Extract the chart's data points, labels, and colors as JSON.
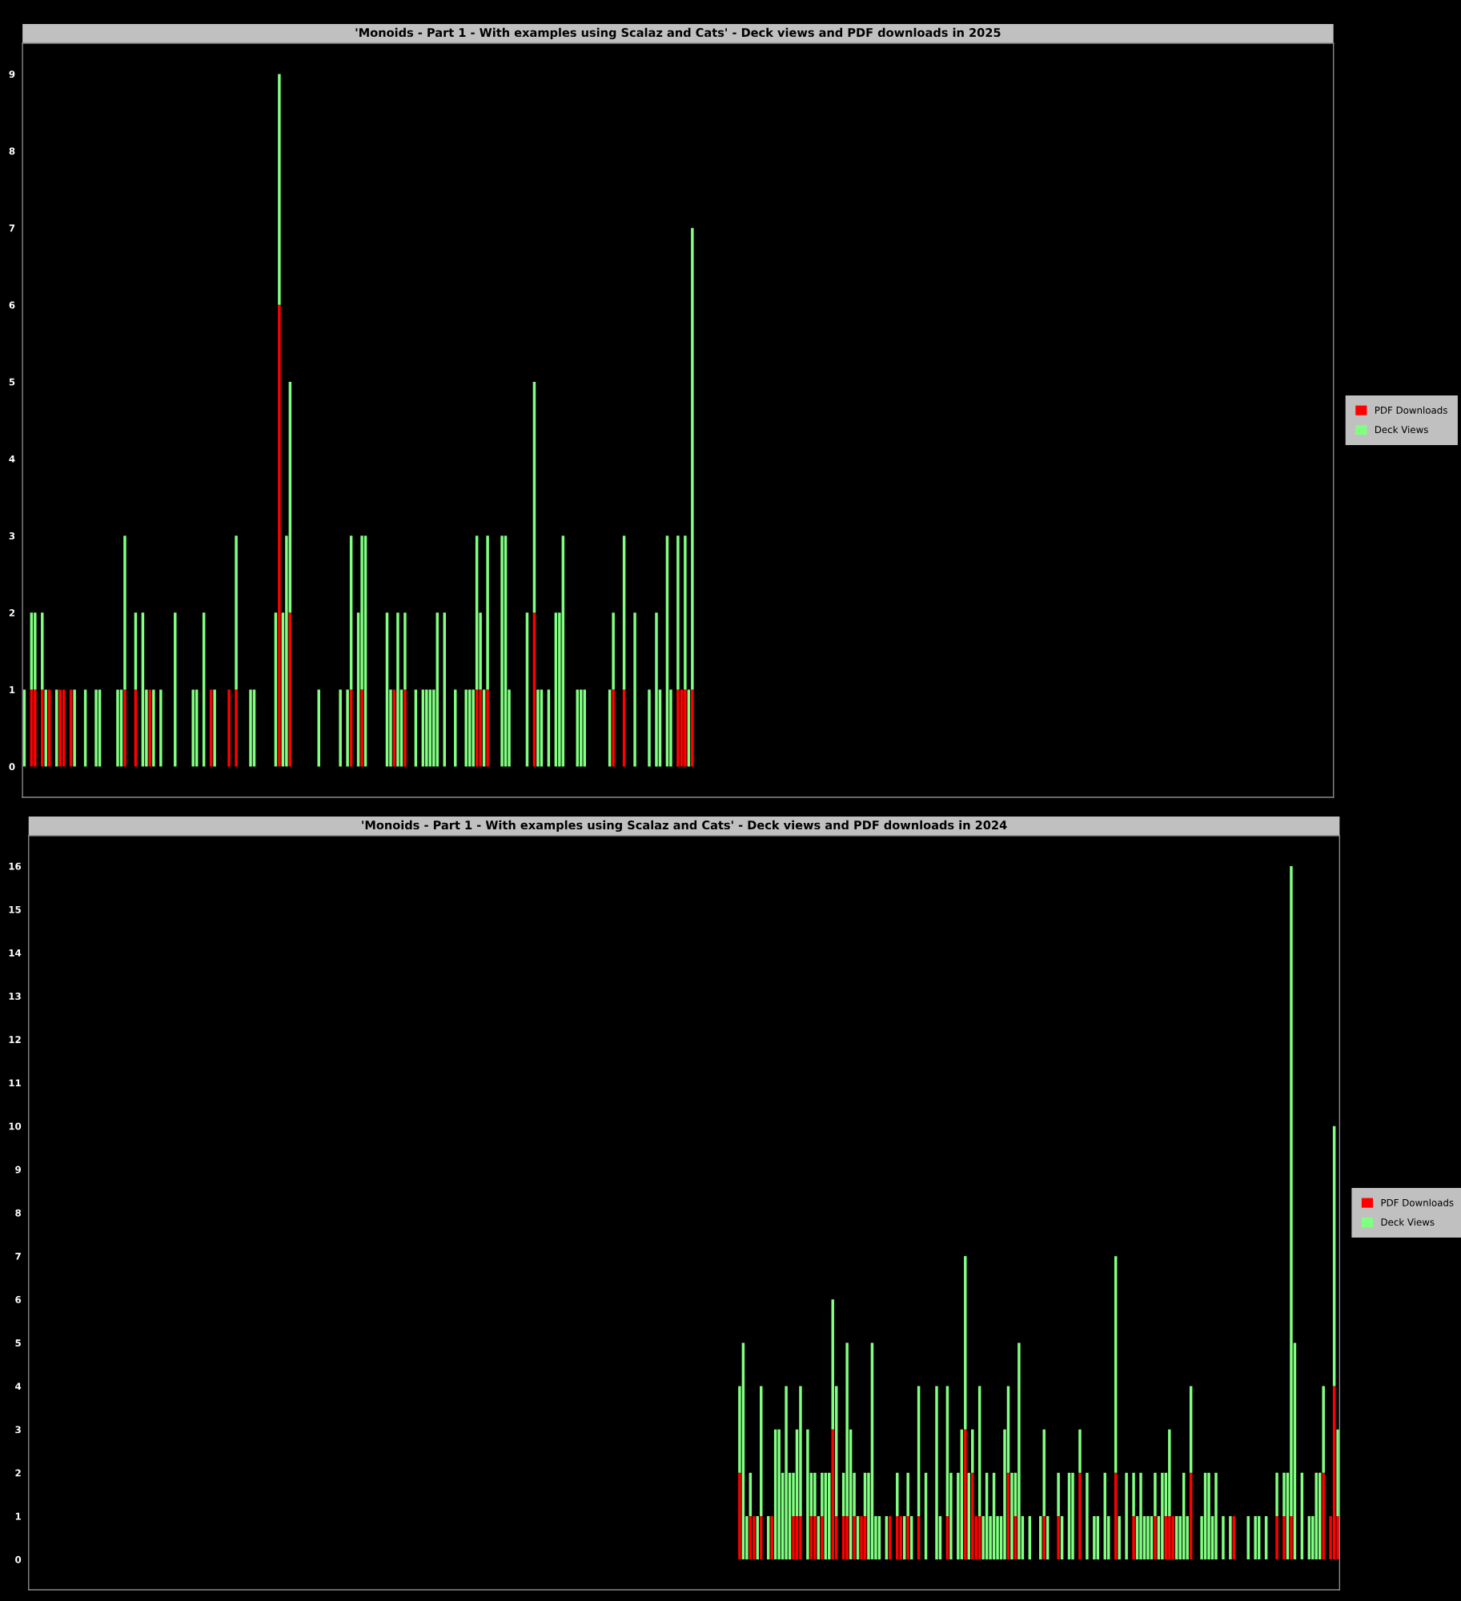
{
  "chart_data": [
    {
      "type": "bar",
      "stacked": true,
      "legend": "right",
      "title": "'Monoids - Part 1 - With examples using Scalaz and Cats' - Deck views and PDF downloads in 2025",
      "ylim": [
        -0.4,
        9.4
      ],
      "yticks": [
        0,
        1,
        2,
        3,
        4,
        5,
        6,
        7,
        8,
        9
      ],
      "categories": [
        null,
        null,
        null,
        null,
        null,
        null,
        null,
        null,
        null,
        null,
        null,
        null,
        null,
        null,
        null,
        null,
        null,
        null,
        null,
        null,
        null,
        null,
        null,
        null,
        null,
        null,
        null,
        null,
        null,
        null,
        null,
        null,
        null,
        null,
        null,
        null,
        null,
        null,
        null,
        null,
        null,
        null,
        null,
        null,
        null,
        null,
        null,
        null,
        null,
        null,
        null,
        null,
        null,
        null,
        null,
        null,
        null,
        null,
        null,
        null,
        null,
        null,
        null,
        null,
        null,
        null,
        null,
        null,
        null,
        null,
        null,
        null,
        null,
        null,
        null,
        null,
        null,
        null,
        null,
        null,
        null,
        null,
        null,
        null,
        null,
        null,
        null,
        null,
        null,
        null,
        null,
        null,
        null,
        null,
        null,
        null,
        null,
        null,
        null,
        null,
        null,
        null,
        null,
        null,
        null,
        null,
        null,
        null,
        null,
        null,
        null,
        null,
        null,
        null,
        null,
        null,
        null,
        null,
        null,
        null,
        null,
        null,
        null,
        null,
        null,
        null,
        null,
        null,
        null,
        null,
        null,
        null,
        null,
        null,
        null,
        null,
        null,
        null,
        null,
        null,
        null,
        null,
        null,
        null,
        null,
        null,
        null,
        null,
        null,
        null,
        null,
        null,
        null,
        null,
        null,
        null,
        null,
        null,
        null,
        null,
        null,
        null,
        null,
        null,
        null,
        null,
        null,
        null,
        null,
        null,
        null,
        null,
        null,
        null,
        null,
        null,
        null,
        null,
        null,
        null,
        null,
        null,
        null,
        null,
        null,
        null,
        null,
        null,
        null,
        null,
        null,
        null,
        null,
        null,
        null,
        null,
        null,
        null,
        null,
        null,
        null,
        null,
        null,
        null,
        null,
        null,
        null,
        null,
        null,
        null,
        null,
        null,
        null,
        null,
        null,
        null,
        null,
        null,
        null,
        null,
        null,
        null,
        null,
        null,
        null,
        null,
        null,
        null,
        null,
        null,
        null,
        null,
        null,
        null,
        null,
        null,
        null,
        null,
        null,
        null,
        null,
        null,
        null,
        null,
        null,
        null,
        null,
        null,
        null,
        null,
        null,
        null,
        null,
        null,
        null,
        null,
        null,
        null,
        null,
        null,
        null,
        null,
        null,
        null,
        null,
        null,
        null,
        null,
        null,
        null,
        null,
        null,
        null,
        null,
        null,
        null,
        null,
        null,
        null,
        null,
        null,
        null,
        null,
        null,
        null,
        null,
        null,
        null,
        null,
        null,
        null,
        null,
        null,
        null,
        null,
        null,
        null,
        null,
        null,
        null,
        null,
        null,
        null,
        null,
        null,
        null,
        null,
        null,
        null,
        null,
        null,
        null,
        null,
        null,
        null,
        null,
        null,
        null,
        null,
        null,
        null,
        null,
        null,
        null,
        null,
        null,
        null,
        null,
        null,
        null,
        null,
        null,
        null,
        null,
        null,
        null,
        null,
        null,
        null,
        null,
        null,
        null,
        null,
        null,
        null,
        null,
        null,
        null,
        null,
        null,
        null,
        null,
        null,
        null,
        null,
        null,
        null,
        null,
        null,
        null,
        null,
        null,
        null,
        null,
        null
      ],
      "series": [
        {
          "name": "PDF Downloads",
          "color": "#ff0000",
          "values": [
            0,
            0,
            1,
            1,
            0,
            1,
            0,
            1,
            0,
            0,
            1,
            1,
            0,
            1,
            0,
            0,
            0,
            0,
            0,
            0,
            0,
            0,
            0,
            0,
            0,
            0,
            0,
            0,
            1,
            0,
            0,
            1,
            0,
            0,
            0,
            1,
            0,
            0,
            0,
            0,
            0,
            0,
            0,
            0,
            0,
            0,
            0,
            0,
            0,
            0,
            0,
            0,
            1,
            0,
            0,
            0,
            0,
            1,
            0,
            1,
            0,
            0,
            0,
            0,
            0,
            0,
            0,
            0,
            0,
            0,
            0,
            6,
            0,
            0,
            2,
            0,
            0,
            0,
            0,
            0,
            0,
            0,
            0,
            0,
            0,
            0,
            0,
            0,
            0,
            0,
            0,
            1,
            0,
            0,
            1,
            0,
            0,
            0,
            0,
            0,
            0,
            0,
            0,
            1,
            0,
            0,
            1,
            0,
            0,
            0,
            0,
            0,
            0,
            0,
            0,
            0,
            0,
            0,
            0,
            0,
            0,
            0,
            0,
            0,
            0,
            0,
            1,
            1,
            0,
            1,
            0,
            0,
            0,
            0,
            0,
            0,
            0,
            0,
            0,
            0,
            0,
            0,
            2,
            0,
            0,
            0,
            0,
            0,
            0,
            0,
            0,
            0,
            0,
            0,
            0,
            0,
            0,
            0,
            0,
            0,
            0,
            0,
            0,
            0,
            1,
            0,
            0,
            1,
            0,
            0,
            0,
            0,
            0,
            0,
            0,
            0,
            0,
            0,
            0,
            0,
            0,
            0,
            1,
            1,
            1,
            0,
            1,
            0,
            0,
            0,
            0,
            0,
            0,
            0,
            0,
            0,
            0,
            0,
            0,
            0,
            0,
            0,
            0,
            0,
            0,
            0,
            0,
            0,
            0,
            0,
            0,
            0,
            0,
            0,
            0,
            0,
            0,
            0,
            0,
            0,
            0,
            0,
            0,
            0,
            0,
            0,
            0,
            0,
            0,
            0,
            0,
            0,
            0,
            0,
            0,
            0,
            0,
            0,
            0,
            0,
            0,
            0,
            0,
            0,
            0,
            0,
            0,
            0,
            0,
            0,
            0,
            0,
            0,
            0,
            0,
            0,
            0,
            0,
            0,
            0,
            0,
            0,
            0,
            0,
            0,
            0,
            0,
            0,
            0,
            0,
            0,
            0,
            0,
            0,
            0,
            0,
            0,
            0,
            0,
            0,
            0,
            0,
            0,
            0,
            0,
            0,
            0,
            0,
            0,
            0,
            0,
            0,
            0,
            0,
            0,
            0,
            0,
            0,
            0,
            0,
            0,
            0,
            0,
            0,
            0,
            0,
            0,
            0,
            0,
            0,
            0,
            0,
            0,
            0,
            0,
            0,
            0,
            0,
            0,
            0,
            0,
            0,
            0,
            0,
            0,
            0,
            0,
            0,
            0,
            0,
            0,
            0,
            0,
            0,
            0,
            0,
            0,
            0,
            0,
            0,
            0,
            0,
            0,
            0,
            0,
            0,
            0,
            0,
            0,
            0,
            0,
            0,
            0,
            0,
            0,
            0,
            0,
            0,
            0,
            0,
            0,
            0,
            0,
            0,
            0
          ]
        },
        {
          "name": "Deck Views",
          "color": "#80ff80",
          "values": [
            1,
            0,
            1,
            1,
            0,
            1,
            1,
            0,
            0,
            1,
            0,
            0,
            0,
            0,
            1,
            0,
            0,
            1,
            0,
            0,
            1,
            1,
            0,
            0,
            0,
            0,
            1,
            1,
            2,
            0,
            0,
            1,
            0,
            2,
            1,
            0,
            1,
            0,
            1,
            0,
            0,
            0,
            2,
            0,
            0,
            0,
            0,
            1,
            1,
            0,
            2,
            0,
            0,
            1,
            0,
            0,
            0,
            0,
            0,
            2,
            0,
            0,
            0,
            1,
            1,
            0,
            0,
            0,
            0,
            0,
            2,
            3,
            2,
            3,
            3,
            0,
            0,
            0,
            0,
            0,
            0,
            0,
            1,
            0,
            0,
            0,
            0,
            0,
            1,
            0,
            1,
            2,
            0,
            2,
            2,
            3,
            0,
            0,
            0,
            0,
            0,
            2,
            1,
            0,
            2,
            1,
            1,
            0,
            0,
            1,
            0,
            1,
            1,
            1,
            1,
            2,
            0,
            2,
            0,
            0,
            1,
            0,
            0,
            1,
            1,
            1,
            2,
            1,
            1,
            2,
            0,
            0,
            0,
            3,
            3,
            1,
            0,
            0,
            0,
            0,
            2,
            0,
            3,
            1,
            1,
            0,
            1,
            0,
            2,
            2,
            3,
            0,
            0,
            0,
            1,
            1,
            1,
            0,
            0,
            0,
            0,
            0,
            0,
            1,
            1,
            0,
            0,
            2,
            0,
            0,
            2,
            0,
            0,
            0,
            1,
            0,
            2,
            1,
            0,
            3,
            1,
            0,
            2,
            0,
            2,
            1,
            6,
            0,
            0,
            0,
            0,
            0,
            0,
            0,
            0,
            0,
            0,
            0,
            0,
            0,
            0,
            0,
            0,
            0,
            0,
            0,
            0,
            0,
            0,
            0,
            0,
            0,
            0,
            0,
            0,
            0,
            0,
            0,
            0,
            0,
            0,
            0,
            0,
            0,
            0,
            0,
            0,
            0,
            0,
            0,
            0,
            0,
            0,
            0,
            0,
            0,
            0,
            0,
            0,
            0,
            0,
            0,
            0,
            0,
            0,
            0,
            0,
            0,
            0,
            0,
            0,
            0,
            0,
            0,
            0,
            0,
            0,
            0,
            0,
            0,
            0,
            0,
            0,
            0,
            0,
            0,
            0,
            0,
            0,
            0,
            0,
            0,
            0,
            0,
            0,
            0,
            0,
            0,
            0,
            0,
            0,
            0,
            0,
            0,
            0,
            0,
            0,
            0,
            0,
            0,
            0,
            0,
            0,
            0,
            0,
            0,
            0,
            0,
            0,
            0,
            0,
            0,
            0,
            0,
            0,
            0,
            0,
            0,
            0,
            0,
            0,
            0,
            0,
            0,
            0,
            0,
            0,
            0,
            0,
            0,
            0,
            0,
            0,
            0,
            0,
            0,
            0,
            0,
            0,
            0,
            0,
            0,
            0,
            0,
            0,
            0,
            0,
            0,
            0,
            0,
            0,
            0,
            0,
            0,
            0,
            0,
            0,
            0,
            0,
            0,
            0,
            0,
            0,
            0,
            0,
            0,
            0,
            0,
            0,
            0,
            0,
            0,
            0,
            0,
            0
          ]
        }
      ]
    },
    {
      "type": "bar",
      "stacked": true,
      "legend": "right",
      "title": "'Monoids - Part 1 - With examples using Scalaz and Cats' - Deck views and PDF downloads in 2024",
      "ylim": [
        -0.7,
        16.7
      ],
      "yticks": [
        0,
        1,
        2,
        3,
        4,
        5,
        6,
        7,
        8,
        9,
        10,
        11,
        12,
        13,
        14,
        15,
        16
      ],
      "categories": [
        null,
        null,
        null,
        null,
        null,
        null,
        null,
        null,
        null,
        null,
        null,
        null,
        null,
        null,
        null,
        null,
        null,
        null,
        null,
        null,
        null,
        null,
        null,
        null,
        null,
        null,
        null,
        null,
        null,
        null,
        null,
        null,
        null,
        null,
        null,
        null,
        null,
        null,
        null,
        null,
        null,
        null,
        null,
        null,
        null,
        null,
        null,
        null,
        null,
        null,
        null,
        null,
        null,
        null,
        null,
        null,
        null,
        null,
        null,
        null,
        null,
        null,
        null,
        null,
        null,
        null,
        null,
        null,
        null,
        null,
        null,
        null,
        null,
        null,
        null,
        null,
        null,
        null,
        null,
        null,
        null,
        null,
        null,
        null,
        null,
        null,
        null,
        null,
        null,
        null,
        null,
        null,
        null,
        null,
        null,
        null,
        null,
        null,
        null,
        null,
        null,
        null,
        null,
        null,
        null,
        null,
        null,
        null,
        null,
        null,
        null,
        null,
        null,
        null,
        null,
        null,
        null,
        null,
        null,
        null,
        null,
        null,
        null,
        null,
        null,
        null,
        null,
        null,
        null,
        null,
        null,
        null,
        null,
        null,
        null,
        null,
        null,
        null,
        null,
        null,
        null,
        null,
        null,
        null,
        null,
        null,
        null,
        null,
        null,
        null,
        null,
        null,
        null,
        null,
        null,
        null,
        null,
        null,
        null,
        null,
        null,
        null,
        null,
        null,
        null,
        null,
        null,
        null,
        null,
        null,
        null,
        null,
        null,
        null,
        null,
        null,
        null,
        null,
        null,
        null,
        null,
        null,
        null,
        null,
        null,
        null,
        null,
        null,
        null,
        null,
        null,
        null,
        null,
        null,
        null,
        null,
        null,
        null,
        null,
        null,
        null,
        null,
        null,
        null,
        null,
        null,
        null,
        null,
        null,
        null,
        null,
        null,
        null,
        null,
        null,
        null,
        null,
        null,
        null,
        null,
        null,
        null,
        null,
        null,
        null,
        null,
        null,
        null,
        null,
        null,
        null,
        null,
        null,
        null,
        null,
        null,
        null,
        null,
        null,
        null,
        null,
        null,
        null,
        null,
        null,
        null,
        null,
        null,
        null,
        null,
        null,
        null,
        null,
        null,
        null,
        null,
        null,
        null,
        null,
        null,
        null,
        null,
        null,
        null,
        null,
        null,
        null,
        null,
        null,
        null,
        null,
        null,
        null,
        null,
        null,
        null,
        null,
        null,
        null,
        null,
        null,
        null,
        null,
        null,
        null,
        null,
        null,
        null,
        null,
        null,
        null,
        null,
        null,
        null,
        null,
        null,
        null,
        null,
        null,
        null,
        null,
        null,
        null,
        null,
        null,
        null,
        null,
        null,
        null,
        null,
        null,
        null,
        null,
        null,
        null,
        null,
        null,
        null,
        null,
        null,
        null,
        null,
        null,
        null,
        null,
        null,
        null,
        null,
        null,
        null,
        null,
        null,
        null,
        null,
        null,
        null,
        null,
        null,
        null,
        null,
        null,
        null,
        null,
        null,
        null,
        null,
        null,
        null,
        null,
        null,
        null,
        null,
        null,
        null,
        null,
        null,
        null,
        null,
        null,
        null,
        null,
        null,
        null,
        null,
        null,
        null
      ],
      "series": [
        {
          "name": "PDF Downloads",
          "color": "#ff0000",
          "values": [
            0,
            0,
            0,
            0,
            0,
            0,
            0,
            0,
            0,
            0,
            0,
            0,
            0,
            0,
            0,
            0,
            0,
            0,
            0,
            0,
            0,
            0,
            0,
            0,
            0,
            0,
            0,
            0,
            0,
            0,
            0,
            0,
            0,
            0,
            0,
            0,
            0,
            0,
            0,
            0,
            0,
            0,
            0,
            0,
            0,
            0,
            0,
            0,
            0,
            0,
            0,
            0,
            0,
            0,
            0,
            0,
            0,
            0,
            0,
            0,
            0,
            0,
            0,
            0,
            0,
            0,
            0,
            0,
            0,
            0,
            0,
            0,
            0,
            0,
            0,
            0,
            0,
            0,
            0,
            0,
            0,
            0,
            0,
            0,
            0,
            0,
            0,
            0,
            0,
            0,
            0,
            0,
            0,
            0,
            0,
            0,
            0,
            0,
            0,
            0,
            0,
            0,
            0,
            0,
            0,
            0,
            0,
            0,
            0,
            0,
            0,
            0,
            0,
            0,
            0,
            0,
            0,
            0,
            0,
            0,
            0,
            0,
            0,
            0,
            0,
            0,
            0,
            0,
            0,
            0,
            0,
            0,
            0,
            0,
            0,
            0,
            0,
            0,
            0,
            0,
            0,
            0,
            0,
            0,
            0,
            0,
            0,
            0,
            0,
            0,
            0,
            0,
            0,
            0,
            0,
            0,
            0,
            0,
            0,
            0,
            0,
            0,
            0,
            0,
            0,
            0,
            0,
            0,
            0,
            0,
            0,
            0,
            0,
            0,
            0,
            0,
            0,
            0,
            0,
            0,
            0,
            0,
            0,
            0,
            0,
            0,
            0,
            0,
            0,
            0,
            0,
            0,
            0,
            0,
            0,
            0,
            0,
            0,
            2,
            0,
            0,
            1,
            1,
            0,
            1,
            0,
            0,
            1,
            0,
            0,
            0,
            0,
            0,
            1,
            1,
            1,
            0,
            0,
            1,
            1,
            0,
            1,
            0,
            0,
            3,
            1,
            0,
            1,
            1,
            0,
            1,
            0,
            1,
            1,
            0,
            0,
            0,
            0,
            0,
            0,
            1,
            0,
            1,
            1,
            0,
            1,
            0,
            0,
            1,
            0,
            0,
            0,
            0,
            0,
            0,
            0,
            1,
            0,
            0,
            0,
            0,
            3,
            0,
            2,
            1,
            1,
            0,
            0,
            0,
            0,
            0,
            0,
            0,
            2,
            0,
            1,
            0,
            0,
            0,
            0,
            0,
            0,
            0,
            1,
            0,
            0,
            0,
            1,
            0,
            0,
            0,
            0,
            0,
            2,
            0,
            0,
            0,
            0,
            0,
            0,
            0,
            0,
            0,
            2,
            0,
            0,
            0,
            0,
            1,
            0,
            0,
            0,
            0,
            0,
            1,
            0,
            0,
            1,
            1,
            1,
            0,
            0,
            0,
            0,
            2,
            0,
            0,
            0,
            0,
            0,
            0,
            0,
            0,
            0,
            0,
            0,
            1,
            0,
            0,
            0,
            0,
            0,
            0,
            0,
            0,
            0,
            0,
            0,
            1,
            0,
            1,
            0,
            1,
            0,
            0,
            0,
            0,
            0,
            0,
            0,
            0,
            2,
            0,
            1,
            4,
            1
          ]
        },
        {
          "name": "Deck Views",
          "color": "#80ff80",
          "values": [
            0,
            0,
            0,
            0,
            0,
            0,
            0,
            0,
            0,
            0,
            0,
            0,
            0,
            0,
            0,
            0,
            0,
            0,
            0,
            0,
            0,
            0,
            0,
            0,
            0,
            0,
            0,
            0,
            0,
            0,
            0,
            0,
            0,
            0,
            0,
            0,
            0,
            0,
            0,
            0,
            0,
            0,
            0,
            0,
            0,
            0,
            0,
            0,
            0,
            0,
            0,
            0,
            0,
            0,
            0,
            0,
            0,
            0,
            0,
            0,
            0,
            0,
            0,
            0,
            0,
            0,
            0,
            0,
            0,
            0,
            0,
            0,
            0,
            0,
            0,
            0,
            0,
            0,
            0,
            0,
            0,
            0,
            0,
            0,
            0,
            0,
            0,
            0,
            0,
            0,
            0,
            0,
            0,
            0,
            0,
            0,
            0,
            0,
            0,
            0,
            0,
            0,
            0,
            0,
            0,
            0,
            0,
            0,
            0,
            0,
            0,
            0,
            0,
            0,
            0,
            0,
            0,
            0,
            0,
            0,
            0,
            0,
            0,
            0,
            0,
            0,
            0,
            0,
            0,
            0,
            0,
            0,
            0,
            0,
            0,
            0,
            0,
            0,
            0,
            0,
            0,
            0,
            0,
            0,
            0,
            0,
            0,
            0,
            0,
            0,
            0,
            0,
            0,
            0,
            0,
            0,
            0,
            0,
            0,
            0,
            0,
            0,
            0,
            0,
            0,
            0,
            0,
            0,
            0,
            0,
            0,
            0,
            0,
            0,
            0,
            0,
            0,
            0,
            0,
            0,
            0,
            0,
            0,
            0,
            0,
            0,
            0,
            0,
            0,
            0,
            0,
            0,
            0,
            0,
            0,
            0,
            0,
            0,
            2,
            5,
            1,
            1,
            0,
            1,
            3,
            0,
            1,
            0,
            3,
            3,
            2,
            4,
            2,
            1,
            2,
            3,
            0,
            3,
            1,
            1,
            1,
            1,
            2,
            2,
            3,
            3,
            0,
            1,
            4,
            3,
            1,
            1,
            0,
            1,
            2,
            5,
            1,
            1,
            0,
            1,
            0,
            0,
            1,
            0,
            1,
            1,
            1,
            0,
            3,
            0,
            2,
            0,
            0,
            4,
            1,
            0,
            3,
            2,
            0,
            2,
            3,
            4,
            2,
            1,
            0,
            3,
            1,
            2,
            1,
            2,
            1,
            1,
            3,
            2,
            2,
            1,
            5,
            1,
            0,
            1,
            0,
            0,
            1,
            2,
            1,
            0,
            0,
            1,
            1,
            0,
            2,
            2,
            0,
            1,
            0,
            2,
            0,
            1,
            1,
            0,
            2,
            1,
            0,
            5,
            1,
            0,
            2,
            0,
            1,
            1,
            2,
            1,
            1,
            1,
            1,
            1,
            2,
            1,
            2,
            0,
            1,
            1,
            2,
            1,
            2,
            0,
            0,
            1,
            2,
            2,
            1,
            2,
            0,
            1,
            0,
            1,
            0,
            0,
            0,
            0,
            1,
            0,
            1,
            1,
            0,
            1,
            0,
            0,
            1,
            0,
            1,
            2,
            15,
            5,
            0,
            2,
            0,
            1,
            1,
            2,
            2,
            2,
            0,
            0,
            6,
            2
          ]
        }
      ]
    }
  ]
}
